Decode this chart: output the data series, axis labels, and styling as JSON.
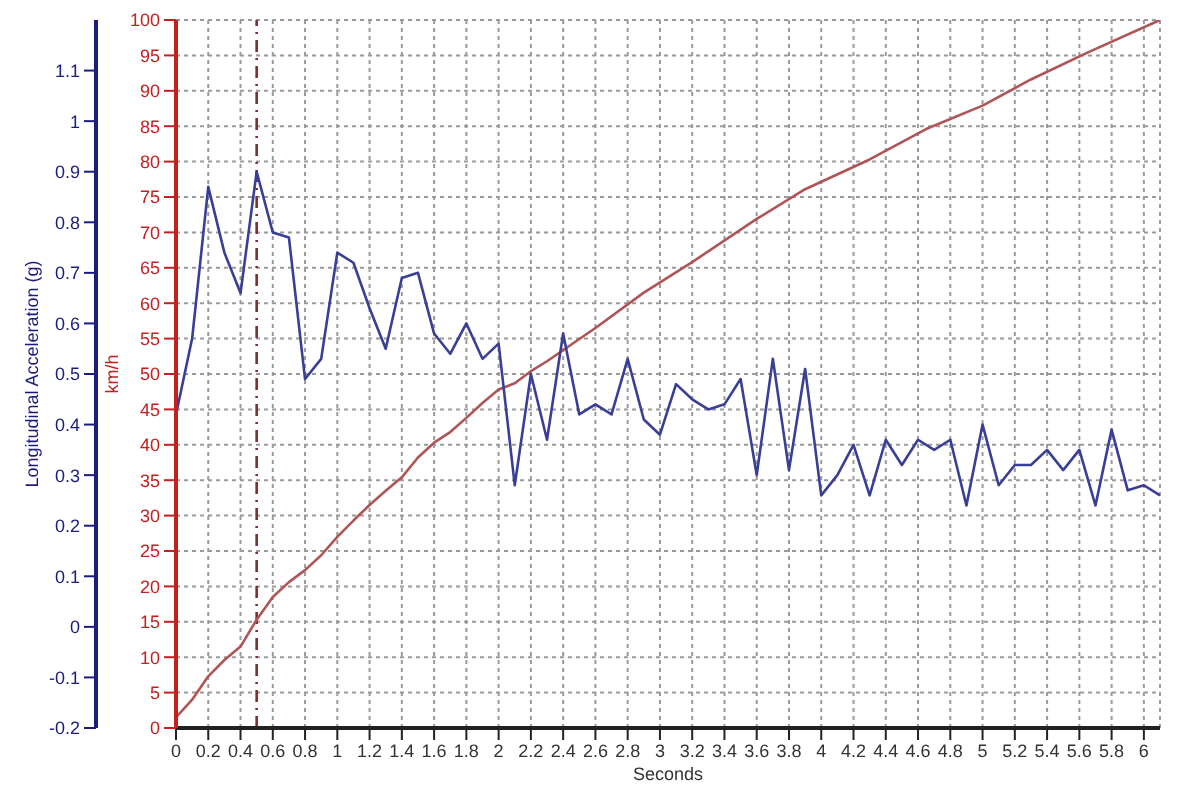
{
  "chart_data": {
    "type": "line",
    "xlabel": "Seconds",
    "ylabel": "km/h",
    "y2label": "Longitudinal Acceleration (g)",
    "xlim": [
      0,
      6.1
    ],
    "xticks": [
      0,
      0.2,
      0.4,
      0.6,
      0.8,
      1,
      1.2,
      1.4,
      1.6,
      1.8,
      2,
      2.2,
      2.4,
      2.6,
      2.8,
      3,
      3.2,
      3.4,
      3.6,
      3.8,
      4,
      4.2,
      4.4,
      4.6,
      4.8,
      5,
      5.2,
      5.4,
      5.6,
      5.8,
      6
    ],
    "ylim": [
      0,
      100
    ],
    "yticks": [
      0,
      5,
      10,
      15,
      20,
      25,
      30,
      35,
      40,
      45,
      50,
      55,
      60,
      65,
      70,
      75,
      80,
      85,
      90,
      95,
      100
    ],
    "y2lim": [
      -0.2,
      1.2
    ],
    "y2ticks": [
      -0.2,
      -0.1,
      0,
      0.1,
      0.2,
      0.3,
      0.4,
      0.5,
      0.6,
      0.7,
      0.8,
      0.9,
      1,
      1.1
    ],
    "grid": true,
    "line_style": "solid",
    "ref_lines": [
      {
        "axis": "x",
        "value": 0.5,
        "color": "#7a3030",
        "line_style": "dashed"
      }
    ],
    "series": [
      {
        "color": "#b05555",
        "x": [
          0,
          0.1,
          0.2,
          0.3,
          0.4,
          0.5,
          0.6,
          0.7,
          0.8,
          0.9,
          1,
          1.1,
          1.2,
          1.3,
          1.4,
          1.5,
          1.6,
          1.7,
          1.8,
          1.9,
          2,
          2.1,
          2.2,
          2.3,
          2.6,
          2.9,
          3.2,
          3.6,
          3.9,
          4.3,
          4.65,
          5,
          5.3,
          5.65,
          6.1
        ],
        "values": [
          1.5,
          4,
          7.3,
          9.6,
          11.5,
          15.3,
          18.5,
          20.6,
          22.3,
          24.4,
          27,
          29.3,
          31.5,
          33.5,
          35.4,
          38.2,
          40.3,
          41.8,
          43.8,
          45.9,
          47.8,
          48.7,
          50.4,
          51.8,
          56.5,
          61.5,
          65.8,
          71.9,
          76.1,
          80.3,
          84.6,
          87.9,
          91.6,
          95.4,
          100
        ]
      },
      {
        "color": "#3a3f96",
        "axis": "y2",
        "x": [
          0,
          0.1,
          0.2,
          0.3,
          0.4,
          0.5,
          0.6,
          0.7,
          0.8,
          0.9,
          1,
          1.1,
          1.2,
          1.3,
          1.4,
          1.5,
          1.6,
          1.7,
          1.8,
          1.9,
          2,
          2.1,
          2.2,
          2.3,
          2.4,
          2.5,
          2.6,
          2.7,
          2.8,
          2.9,
          3,
          3.1,
          3.2,
          3.3,
          3.4,
          3.5,
          3.6,
          3.7,
          3.8,
          3.9,
          4,
          4.1,
          4.2,
          4.3,
          4.4,
          4.5,
          4.6,
          4.7,
          4.8,
          4.9,
          5,
          5.1,
          5.2,
          5.3,
          5.4,
          5.5,
          5.6,
          5.7,
          5.8,
          5.9,
          6,
          6.1
        ],
        "values": [
          0.42,
          0.57,
          0.87,
          0.74,
          0.66,
          0.9,
          0.78,
          0.77,
          0.49,
          0.53,
          0.74,
          0.72,
          0.63,
          0.55,
          0.69,
          0.7,
          0.58,
          0.54,
          0.6,
          0.53,
          0.56,
          0.28,
          0.5,
          0.37,
          0.58,
          0.42,
          0.44,
          0.42,
          0.53,
          0.41,
          0.38,
          0.48,
          0.45,
          0.43,
          0.44,
          0.49,
          0.3,
          0.53,
          0.31,
          0.51,
          0.26,
          0.3,
          0.36,
          0.26,
          0.37,
          0.32,
          0.37,
          0.35,
          0.37,
          0.24,
          0.4,
          0.28,
          0.32,
          0.32,
          0.35,
          0.31,
          0.35,
          0.24,
          0.39,
          0.27,
          0.28,
          0.26
        ]
      }
    ]
  }
}
